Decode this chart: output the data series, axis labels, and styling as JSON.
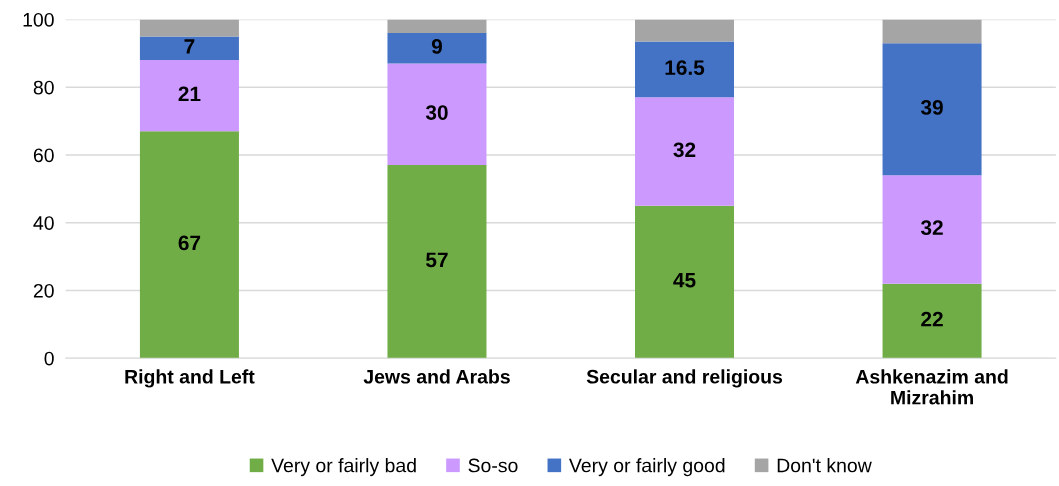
{
  "chart_data": {
    "type": "bar",
    "stacked": true,
    "categories": [
      "Right and Left",
      "Jews and Arabs",
      "Secular and religious",
      "Ashkenazim and\nMizrahim"
    ],
    "series": [
      {
        "name": "Very or fairly bad",
        "color": "#70ad47",
        "values": [
          67,
          57,
          45,
          22
        ],
        "value_labels": [
          "67",
          "57",
          "45",
          "22"
        ]
      },
      {
        "name": "So-so",
        "color": "#cc99ff",
        "values": [
          21,
          30,
          32,
          32
        ],
        "value_labels": [
          "21",
          "30",
          "32",
          "32"
        ]
      },
      {
        "name": "Very or fairly good",
        "color": "#4472c4",
        "values": [
          7,
          9,
          16.5,
          39
        ],
        "value_labels": [
          "7",
          "9",
          "16.5",
          "39"
        ]
      },
      {
        "name": "Don't know",
        "color": "#a5a5a5",
        "values": [
          5,
          4,
          6.5,
          7
        ],
        "value_labels": [
          null,
          null,
          null,
          null
        ]
      }
    ],
    "ylim": [
      0,
      100
    ],
    "yticks": [
      0,
      20,
      40,
      60,
      80,
      100
    ],
    "grid": "y",
    "legend": "bottom"
  }
}
